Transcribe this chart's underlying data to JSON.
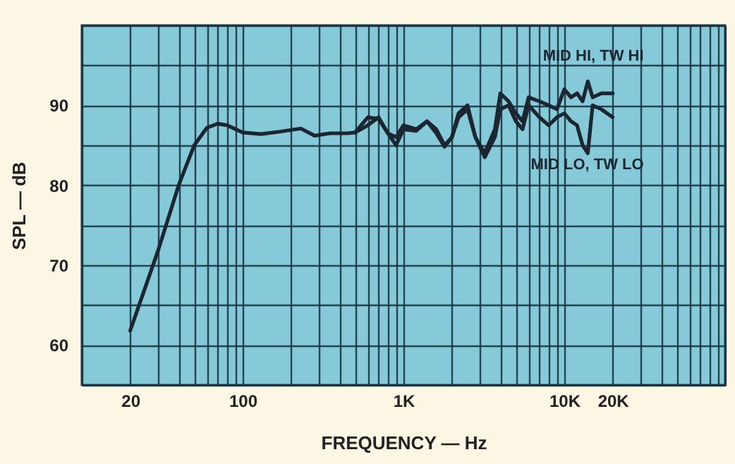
{
  "chart_data": {
    "type": "line",
    "xlabel": "FREQUENCY — Hz",
    "ylabel": "SPL — dB",
    "log": "x",
    "grid": true,
    "line_style": "solid",
    "marker": "none",
    "xlim": [
      10,
      100000
    ],
    "ylim": [
      55,
      100
    ],
    "xticks": [
      {
        "value": 10,
        "label": null
      },
      {
        "value": 20,
        "label": "20"
      },
      {
        "value": 30,
        "label": null
      },
      {
        "value": 40,
        "label": null
      },
      {
        "value": 50,
        "label": null
      },
      {
        "value": 60,
        "label": null
      },
      {
        "value": 70,
        "label": null
      },
      {
        "value": 80,
        "label": null
      },
      {
        "value": 90,
        "label": null
      },
      {
        "value": 100,
        "label": "100"
      },
      {
        "value": 200,
        "label": null
      },
      {
        "value": 300,
        "label": null
      },
      {
        "value": 400,
        "label": null
      },
      {
        "value": 500,
        "label": null
      },
      {
        "value": 600,
        "label": null
      },
      {
        "value": 700,
        "label": null
      },
      {
        "value": 800,
        "label": null
      },
      {
        "value": 900,
        "label": null
      },
      {
        "value": 1000,
        "label": "1K"
      },
      {
        "value": 2000,
        "label": null
      },
      {
        "value": 3000,
        "label": null
      },
      {
        "value": 4000,
        "label": null
      },
      {
        "value": 5000,
        "label": null
      },
      {
        "value": 6000,
        "label": null
      },
      {
        "value": 7000,
        "label": null
      },
      {
        "value": 8000,
        "label": null
      },
      {
        "value": 9000,
        "label": null
      },
      {
        "value": 10000,
        "label": "10K"
      },
      {
        "value": 20000,
        "label": "20K"
      },
      {
        "value": 30000,
        "label": null
      },
      {
        "value": 40000,
        "label": null
      },
      {
        "value": 50000,
        "label": null
      },
      {
        "value": 60000,
        "label": null
      },
      {
        "value": 70000,
        "label": null
      },
      {
        "value": 80000,
        "label": null
      },
      {
        "value": 90000,
        "label": null
      },
      {
        "value": 100000,
        "label": null
      }
    ],
    "yticks": [
      {
        "value": 55,
        "label": null
      },
      60,
      {
        "value": 65,
        "label": null
      },
      70,
      {
        "value": 75,
        "label": null
      },
      80,
      {
        "value": 85,
        "label": null
      },
      90,
      {
        "value": 95,
        "label": null
      },
      {
        "value": 100,
        "label": null
      }
    ],
    "series": [
      {
        "name": "MID HI, TW HI",
        "color": "#1c2630",
        "x": [
          20,
          30,
          40,
          50,
          60,
          70,
          80,
          100,
          130,
          170,
          230,
          280,
          350,
          450,
          500,
          600,
          700,
          800,
          900,
          1000,
          1200,
          1400,
          1600,
          1800,
          2000,
          2200,
          2500,
          2800,
          3200,
          3700,
          4000,
          4500,
          5000,
          5500,
          6000,
          7000,
          8000,
          9000,
          10000,
          11000,
          12000,
          13000,
          14000,
          15000,
          17000,
          20000
        ],
        "values": [
          61.8,
          72,
          80,
          85,
          87.2,
          87.7,
          87.5,
          86.6,
          86.4,
          86.7,
          87.1,
          86.2,
          86.5,
          86.5,
          86.6,
          88.5,
          88.3,
          86.5,
          86,
          87.5,
          87,
          88,
          87,
          85,
          86,
          89,
          90,
          86,
          84,
          87,
          91.5,
          90.5,
          89,
          88,
          91,
          90.5,
          90,
          89.5,
          92,
          91,
          91.5,
          90.5,
          93,
          91,
          91.5,
          91.5
        ]
      },
      {
        "name": "MID LO, TW LO",
        "color": "#1c2630",
        "x": [
          500,
          600,
          700,
          800,
          900,
          1000,
          1200,
          1400,
          1600,
          1800,
          2000,
          2200,
          2500,
          2800,
          3200,
          3700,
          4000,
          4500,
          5000,
          5500,
          6000,
          7000,
          8000,
          9000,
          10000,
          11000,
          12000,
          13000,
          14000,
          15000,
          17000,
          20000
        ],
        "values": [
          86.6,
          87.5,
          88.5,
          86.5,
          85,
          87,
          86.8,
          88,
          86.5,
          84.8,
          86,
          88.5,
          89.5,
          86,
          83.5,
          86,
          89.5,
          90,
          88,
          87,
          90,
          88.5,
          87.5,
          88.5,
          89,
          88,
          87.5,
          85,
          84,
          90,
          89.5,
          88.5
        ]
      }
    ]
  }
}
